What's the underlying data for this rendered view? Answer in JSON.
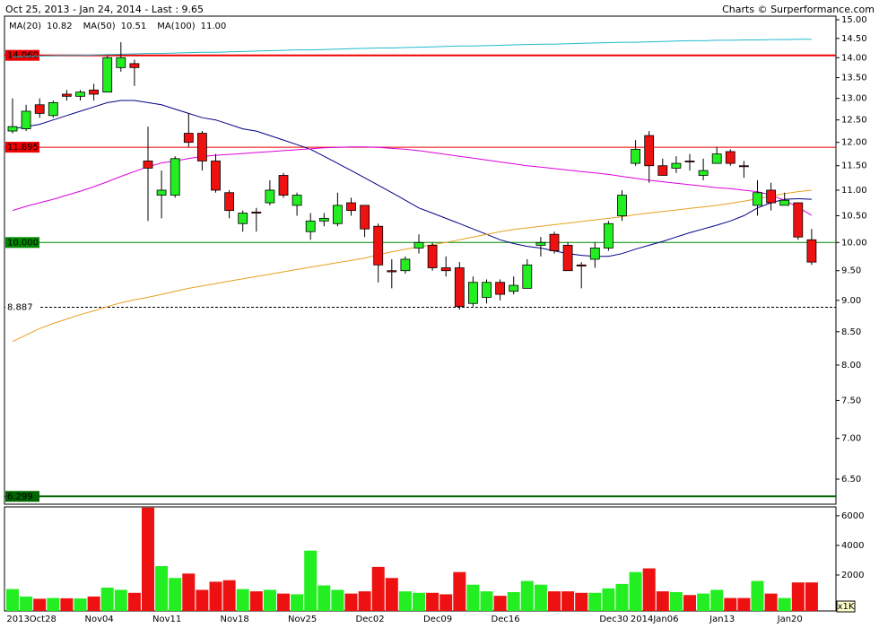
{
  "chart_data": {
    "type": "candlestick",
    "title": "Oct 25, 2013 - Jan 24, 2014 - Last : 9.65",
    "source": "Charts © Surperformance.com",
    "log_scale": true,
    "up_color": "#22ee22",
    "down_color": "#ee1111",
    "ylim": [
      6.21,
      15.1
    ],
    "yticks": [
      {
        "value": 15,
        "label": "15.00"
      },
      {
        "value": 14.5,
        "label": "14.50"
      },
      {
        "value": 14,
        "label": "14.00"
      },
      {
        "value": 13.5,
        "label": "13.50"
      },
      {
        "value": 13,
        "label": "13.00"
      },
      {
        "value": 12.5,
        "label": "12.50"
      },
      {
        "value": 12,
        "label": "12.00"
      },
      {
        "value": 11.5,
        "label": "11.50"
      },
      {
        "value": 11,
        "label": "11.00"
      },
      {
        "value": 10.5,
        "label": "10.50"
      },
      {
        "value": 10,
        "label": "10.00"
      },
      {
        "value": 9.5,
        "label": "9.50"
      },
      {
        "value": 9,
        "label": "9.00"
      },
      {
        "value": 8.5,
        "label": "8.50"
      },
      {
        "value": 8,
        "label": "8.00"
      },
      {
        "value": 7.5,
        "label": "7.50"
      },
      {
        "value": 7,
        "label": "7.00"
      },
      {
        "value": 6.5,
        "label": "6.50"
      }
    ],
    "categories": [
      null,
      "2013Oct28",
      null,
      null,
      null,
      null,
      "Nov04",
      null,
      null,
      null,
      null,
      "Nov11",
      null,
      null,
      null,
      null,
      "Nov18",
      null,
      null,
      null,
      null,
      "Nov25",
      null,
      null,
      null,
      null,
      "Dec02",
      null,
      null,
      null,
      null,
      "Dec09",
      null,
      null,
      null,
      null,
      "Dec16",
      null,
      null,
      null,
      null,
      null,
      null,
      null,
      "Dec30",
      null,
      null,
      "2014Jan06",
      null,
      null,
      null,
      null,
      "Jan13",
      null,
      null,
      null,
      null,
      "Jan20",
      null,
      null
    ],
    "open": [
      12.25,
      12.3,
      12.85,
      12.6,
      13.1,
      13.05,
      13.2,
      13.15,
      13.75,
      13.85,
      11.6,
      10.9,
      10.9,
      12.2,
      12.2,
      11.6,
      10.95,
      10.35,
      10.57,
      10.75,
      11.3,
      10.7,
      10.2,
      10.4,
      10.35,
      10.75,
      10.7,
      10.3,
      9.5,
      9.5,
      9.9,
      9.95,
      9.55,
      9.55,
      8.95,
      9.05,
      9.3,
      9.15,
      9.2,
      9.95,
      10.15,
      9.95,
      9.6,
      9.7,
      9.9,
      10.5,
      11.55,
      12.15,
      11.5,
      11.45,
      11.6,
      11.3,
      11.55,
      11.8,
      11.5,
      10.7,
      11.0,
      10.7,
      10.75,
      10.05
    ],
    "high": [
      13.0,
      12.85,
      13.0,
      12.95,
      13.2,
      13.2,
      13.35,
      14.05,
      14.4,
      13.95,
      12.35,
      11.4,
      11.7,
      12.65,
      12.25,
      11.75,
      11.0,
      10.6,
      10.65,
      11.2,
      11.35,
      10.95,
      10.55,
      10.55,
      10.95,
      10.85,
      10.7,
      10.35,
      9.7,
      9.75,
      10.15,
      10.0,
      9.75,
      9.65,
      9.4,
      9.35,
      9.35,
      9.4,
      9.7,
      10.1,
      10.2,
      10.0,
      9.65,
      10.0,
      10.4,
      11.0,
      12.05,
      12.25,
      11.65,
      11.7,
      11.75,
      11.65,
      11.9,
      11.85,
      11.6,
      11.2,
      11.15,
      10.95,
      10.75,
      10.25
    ],
    "low": [
      12.2,
      12.25,
      12.55,
      12.55,
      12.95,
      12.95,
      12.95,
      13.15,
      13.65,
      13.3,
      10.4,
      10.45,
      10.85,
      11.9,
      11.4,
      10.95,
      10.45,
      10.2,
      10.2,
      10.7,
      10.85,
      10.5,
      10.05,
      10.3,
      10.3,
      10.5,
      10.1,
      9.3,
      9.2,
      9.45,
      9.8,
      9.5,
      9.4,
      8.85,
      8.9,
      8.95,
      9.0,
      9.1,
      9.2,
      9.75,
      9.8,
      9.5,
      9.2,
      9.55,
      9.85,
      10.4,
      11.5,
      11.15,
      11.3,
      11.35,
      11.4,
      11.2,
      11.55,
      11.5,
      11.25,
      10.5,
      10.6,
      10.7,
      10.05,
      9.6
    ],
    "close": [
      12.35,
      12.7,
      12.65,
      12.9,
      13.05,
      13.15,
      13.1,
      14.0,
      14.0,
      13.75,
      11.45,
      11.0,
      11.65,
      12.0,
      11.6,
      11.0,
      10.6,
      10.55,
      10.55,
      11.0,
      10.9,
      10.9,
      10.4,
      10.45,
      10.7,
      10.6,
      10.25,
      9.6,
      9.48,
      9.7,
      10.0,
      9.55,
      9.5,
      8.9,
      9.3,
      9.3,
      9.1,
      9.25,
      9.6,
      10.0,
      9.85,
      9.5,
      9.58,
      9.9,
      10.35,
      10.9,
      11.85,
      11.5,
      11.3,
      11.55,
      11.58,
      11.4,
      11.75,
      11.55,
      11.48,
      10.95,
      10.75,
      10.8,
      10.1,
      9.65
    ],
    "levels": [
      {
        "value": 14.06,
        "label": "14.060",
        "color": "#ee0000",
        "style": "thick"
      },
      {
        "value": 11.895,
        "label": "11.895",
        "color": "#ee0000",
        "style": "solid"
      },
      {
        "value": 10,
        "label": "10.000",
        "color": "#008800",
        "style": "solid"
      },
      {
        "value": 8.887,
        "label": "8.887",
        "color": "#000000",
        "style": "dashed"
      },
      {
        "value": 6.299,
        "label": "6.299",
        "color": "#006600",
        "style": "thick"
      }
    ],
    "series": [
      {
        "name": "MA(20)",
        "legend_value": "10.82",
        "color": "#000088",
        "values": [
          12.3,
          12.35,
          12.4,
          12.5,
          12.6,
          12.7,
          12.8,
          12.9,
          12.95,
          12.95,
          12.9,
          12.85,
          12.75,
          12.65,
          12.55,
          12.5,
          12.4,
          12.3,
          12.25,
          12.15,
          12.05,
          11.95,
          11.85,
          11.7,
          11.55,
          11.4,
          11.25,
          11.1,
          10.95,
          10.8,
          10.65,
          10.55,
          10.45,
          10.35,
          10.25,
          10.15,
          10.05,
          9.98,
          9.93,
          9.9,
          9.85,
          9.8,
          9.77,
          9.75,
          9.75,
          9.8,
          9.88,
          9.95,
          10.02,
          10.1,
          10.18,
          10.25,
          10.32,
          10.4,
          10.5,
          10.65,
          10.75,
          10.82,
          10.83,
          10.82
        ]
      },
      {
        "name": "MA(50)",
        "legend_value": "10.51",
        "color": "#dd00dd",
        "values": [
          10.6,
          10.68,
          10.75,
          10.82,
          10.9,
          10.98,
          11.07,
          11.17,
          11.28,
          11.38,
          11.48,
          11.56,
          11.6,
          11.65,
          11.7,
          11.72,
          11.74,
          11.76,
          11.78,
          11.8,
          11.82,
          11.84,
          11.86,
          11.88,
          11.89,
          11.9,
          11.9,
          11.89,
          11.87,
          11.85,
          11.82,
          11.78,
          11.74,
          11.7,
          11.66,
          11.62,
          11.58,
          11.54,
          11.5,
          11.47,
          11.44,
          11.41,
          11.38,
          11.35,
          11.32,
          11.28,
          11.24,
          11.2,
          11.17,
          11.14,
          11.11,
          11.08,
          11.05,
          11.03,
          11.0,
          10.97,
          10.9,
          10.8,
          10.66,
          10.51
        ]
      },
      {
        "name": "MA(100)",
        "legend_value": "11.00",
        "color": "#e8a020",
        "values": [
          8.35,
          8.45,
          8.55,
          8.63,
          8.7,
          8.77,
          8.83,
          8.9,
          8.96,
          9.01,
          9.05,
          9.1,
          9.15,
          9.2,
          9.24,
          9.28,
          9.32,
          9.36,
          9.4,
          9.44,
          9.48,
          9.52,
          9.56,
          9.6,
          9.64,
          9.68,
          9.72,
          9.78,
          9.83,
          9.88,
          9.92,
          9.96,
          10.0,
          10.05,
          10.1,
          10.15,
          10.2,
          10.24,
          10.27,
          10.3,
          10.33,
          10.36,
          10.39,
          10.42,
          10.45,
          10.48,
          10.52,
          10.55,
          10.58,
          10.61,
          10.64,
          10.67,
          10.7,
          10.74,
          10.78,
          10.83,
          10.88,
          10.93,
          10.97,
          11.0
        ]
      },
      {
        "color": "#22bbcc",
        "values": [
          14.02,
          14.03,
          14.04,
          14.05,
          14.06,
          14.06,
          14.07,
          14.08,
          14.09,
          14.1,
          14.11,
          14.11,
          14.12,
          14.13,
          14.14,
          14.14,
          14.15,
          14.16,
          14.17,
          14.18,
          14.19,
          14.2,
          14.2,
          14.21,
          14.22,
          14.23,
          14.24,
          14.25,
          14.25,
          14.26,
          14.27,
          14.28,
          14.29,
          14.3,
          14.3,
          14.31,
          14.32,
          14.33,
          14.34,
          14.35,
          14.35,
          14.36,
          14.37,
          14.38,
          14.39,
          14.4,
          14.4,
          14.41,
          14.42,
          14.43,
          14.44,
          14.44,
          14.45,
          14.45,
          14.46,
          14.46,
          14.47,
          14.47,
          14.48,
          14.48
        ]
      }
    ],
    "volume": {
      "unit_label": "x1K",
      "color": "#000088",
      "ylim": [
        0,
        6600
      ],
      "yticks": [
        2000,
        4000,
        6000
      ],
      "values": [
        1050,
        550,
        400,
        450,
        430,
        420,
        550,
        1150,
        1000,
        800,
        6550,
        2600,
        1800,
        2100,
        1000,
        1550,
        1650,
        1050,
        900,
        1000,
        750,
        700,
        3650,
        1300,
        1000,
        750,
        900,
        2550,
        1800,
        900,
        800,
        800,
        700,
        2200,
        1350,
        900,
        600,
        850,
        1600,
        1350,
        900,
        900,
        800,
        800,
        1100,
        1400,
        2200,
        2450,
        900,
        850,
        650,
        750,
        1000,
        450,
        450,
        1600,
        750,
        450,
        1500,
        1500
      ]
    }
  }
}
